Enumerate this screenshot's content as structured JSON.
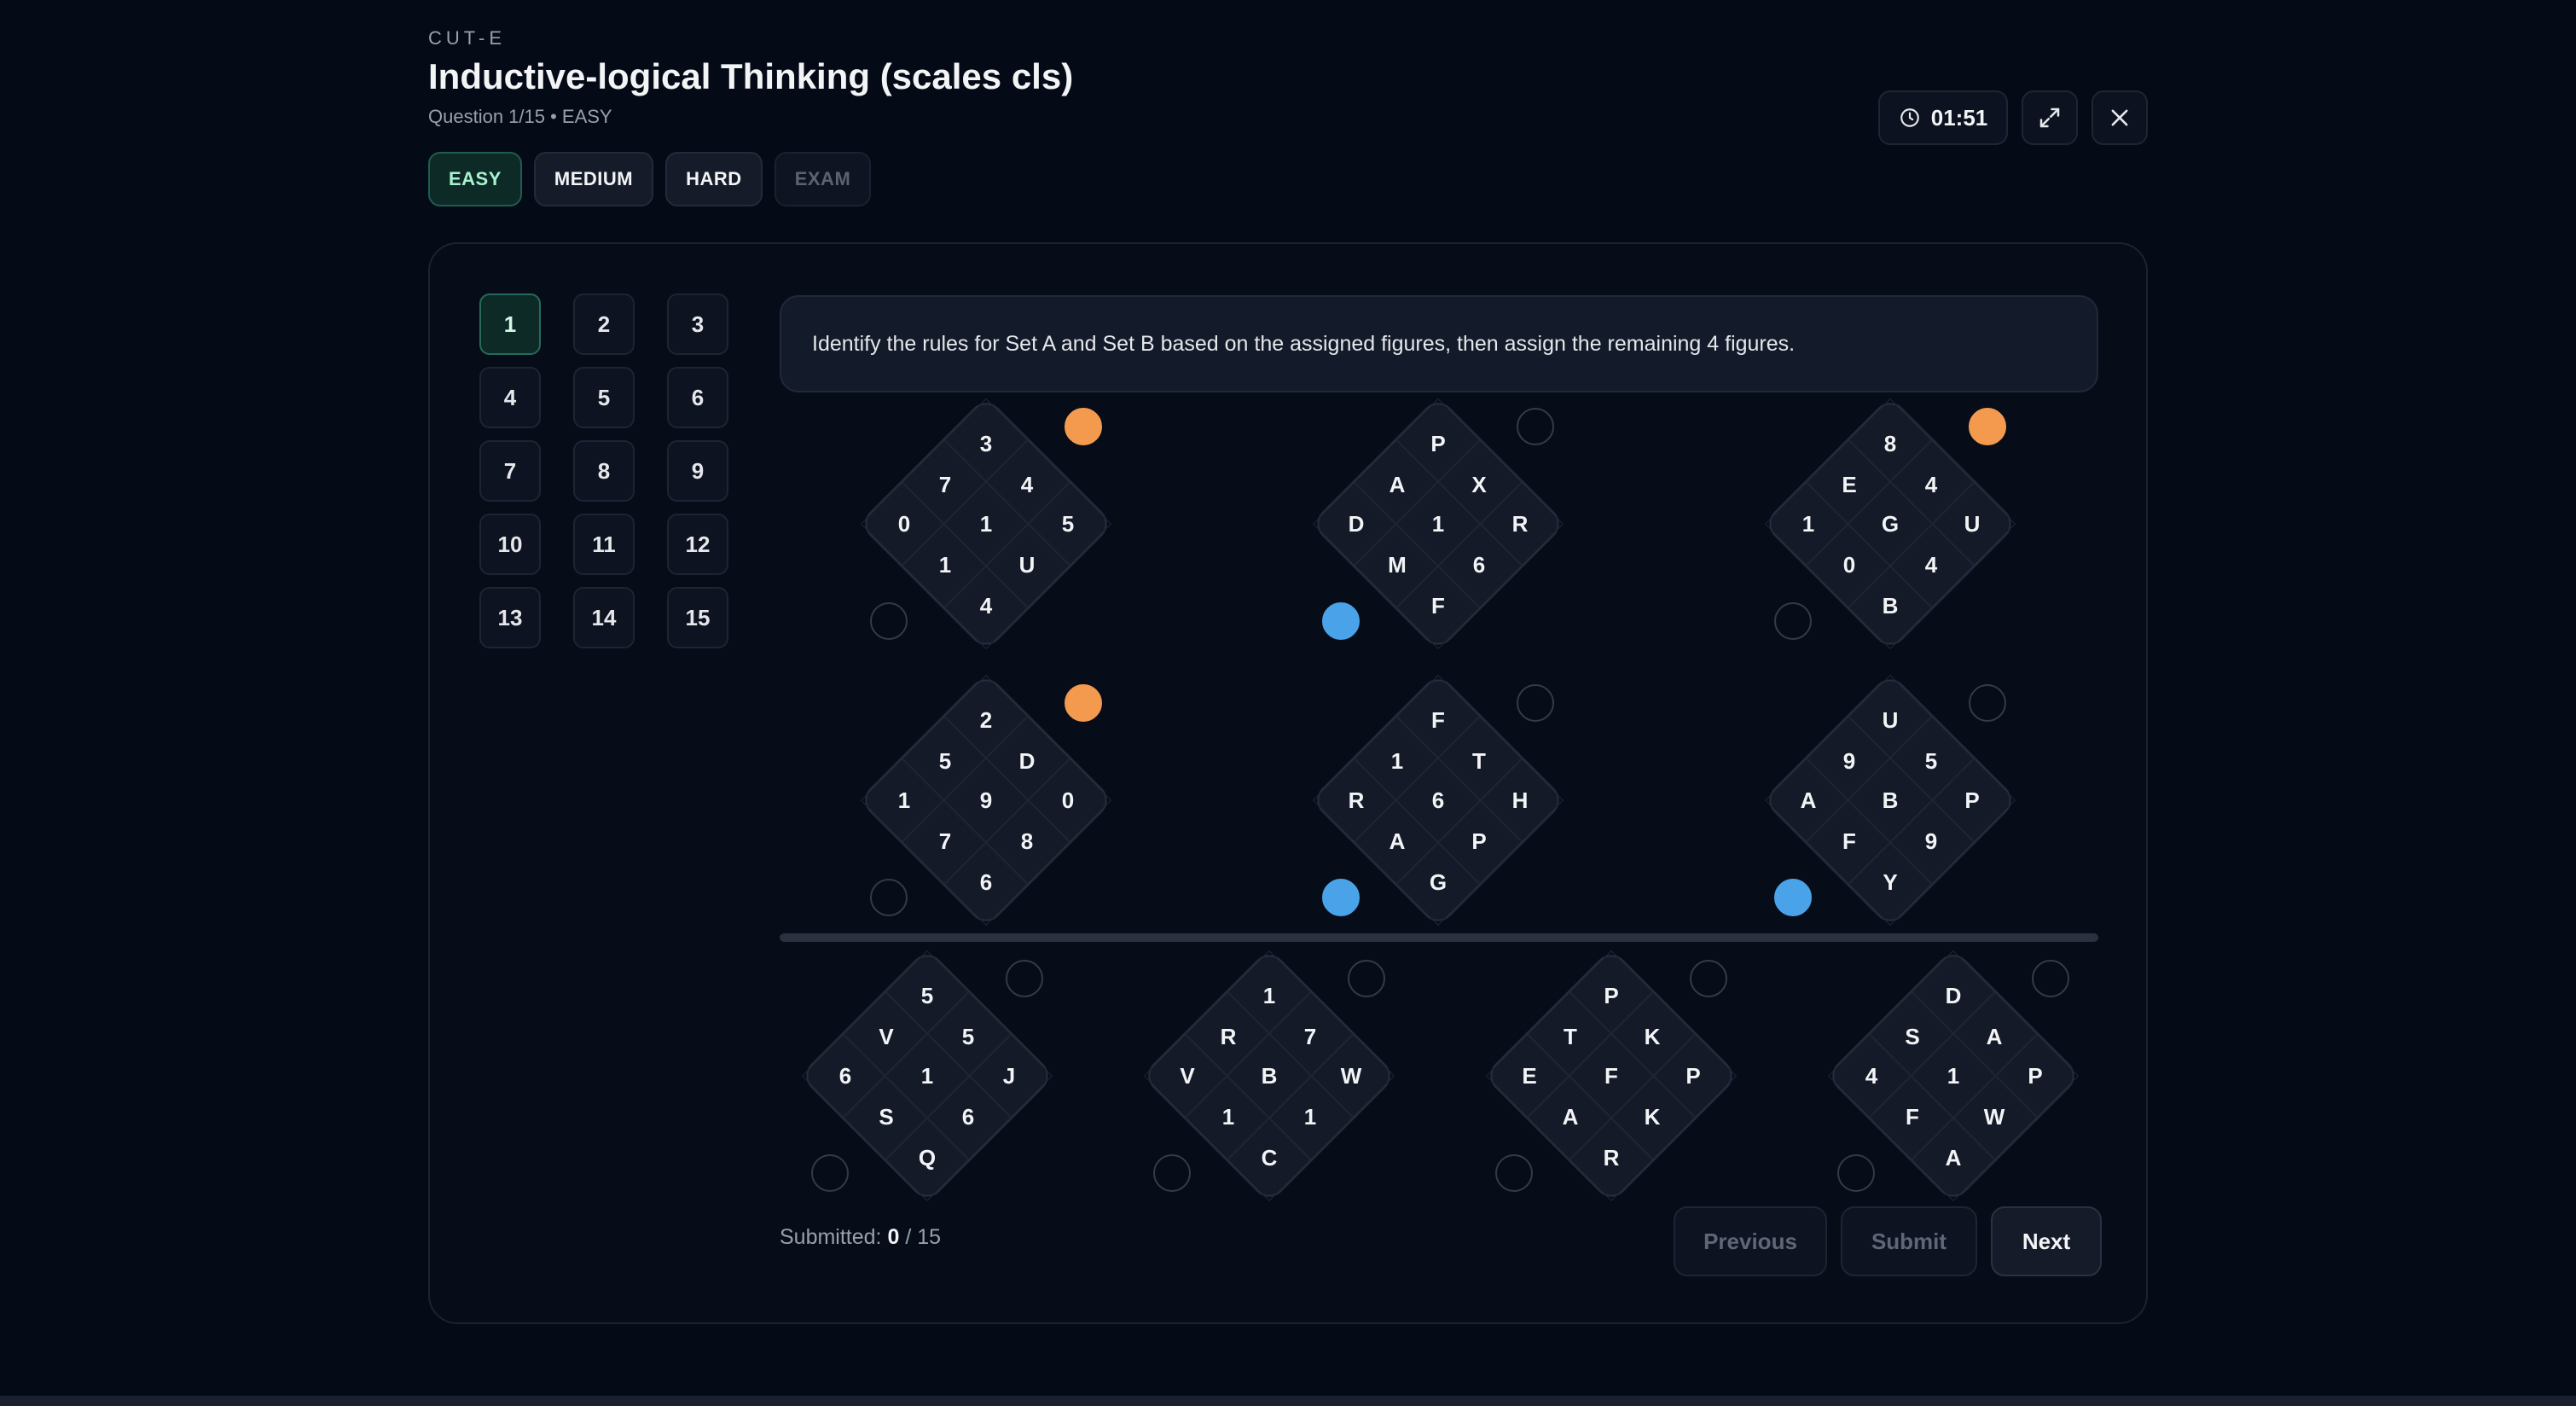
{
  "header": {
    "brand": "CUT-E",
    "title": "Inductive-logical Thinking (scales cls)",
    "subtitle": "Question 1/15 • EASY"
  },
  "difficulty_tabs": [
    {
      "label": "EASY",
      "state": "active"
    },
    {
      "label": "MEDIUM",
      "state": "normal"
    },
    {
      "label": "HARD",
      "state": "normal"
    },
    {
      "label": "EXAM",
      "state": "disabled"
    }
  ],
  "timer": {
    "value": "01:51",
    "icon": "clock-icon"
  },
  "controls": {
    "fullscreen_icon": "expand-icon",
    "close_icon": "close-icon"
  },
  "question_nav": [
    "1",
    "2",
    "3",
    "4",
    "5",
    "6",
    "7",
    "8",
    "9",
    "10",
    "11",
    "12",
    "13",
    "14",
    "15"
  ],
  "active_question": "1",
  "instruction": "Identify the rules for Set A and Set B based on the assigned figures, then assign the remaining 4 figures.",
  "assigned_figures": [
    {
      "labels": [
        "3",
        "7",
        "4",
        "0",
        "1",
        "5",
        "1",
        "U",
        "4"
      ],
      "set": "A"
    },
    {
      "labels": [
        "P",
        "A",
        "X",
        "D",
        "1",
        "R",
        "M",
        "6",
        "F"
      ],
      "set": "B"
    },
    {
      "labels": [
        "8",
        "E",
        "4",
        "1",
        "G",
        "U",
        "0",
        "4",
        "B"
      ],
      "set": "A"
    },
    {
      "labels": [
        "2",
        "5",
        "D",
        "1",
        "9",
        "0",
        "7",
        "8",
        "6"
      ],
      "set": "A"
    },
    {
      "labels": [
        "F",
        "1",
        "T",
        "R",
        "6",
        "H",
        "A",
        "P",
        "G"
      ],
      "set": "B"
    },
    {
      "labels": [
        "U",
        "9",
        "5",
        "A",
        "B",
        "P",
        "F",
        "9",
        "Y"
      ],
      "set": "B"
    }
  ],
  "unassigned_figures": [
    {
      "labels": [
        "5",
        "V",
        "5",
        "6",
        "1",
        "J",
        "S",
        "6",
        "Q"
      ]
    },
    {
      "labels": [
        "1",
        "R",
        "7",
        "V",
        "B",
        "W",
        "1",
        "1",
        "C"
      ]
    },
    {
      "labels": [
        "P",
        "T",
        "K",
        "E",
        "F",
        "P",
        "A",
        "K",
        "R"
      ]
    },
    {
      "labels": [
        "D",
        "S",
        "A",
        "4",
        "1",
        "P",
        "F",
        "W",
        "A"
      ]
    }
  ],
  "colors": {
    "set_a": "#f39a4e",
    "set_b": "#4aa3e8",
    "accent": "#a7f3d0"
  },
  "footer": {
    "submitted_label": "Submitted:",
    "submitted_count": "0",
    "submitted_total": "/ 15",
    "previous_label": "Previous",
    "submit_label": "Submit",
    "next_label": "Next"
  }
}
